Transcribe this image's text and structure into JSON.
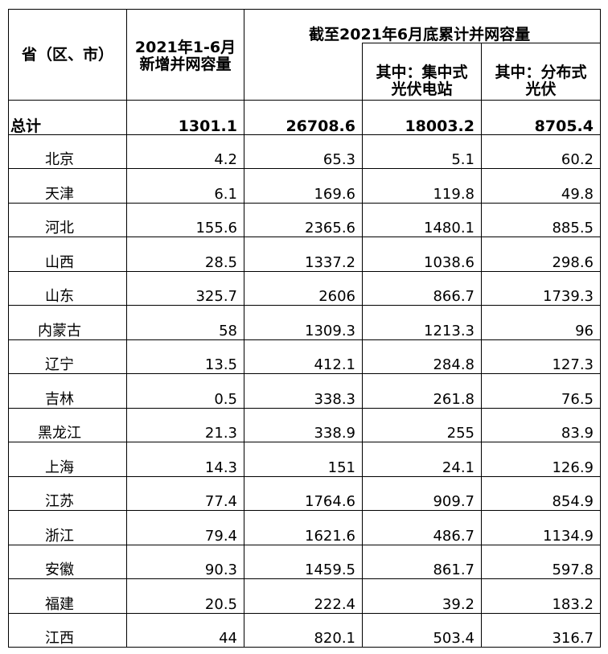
{
  "header": {
    "region": "省（区、市）",
    "new_capacity": [
      "2021年1-6月",
      "新增并网容量"
    ],
    "cumulative": "截至2021年6月底累计并网容量",
    "centralized": [
      "其中：集中式",
      "光伏电站"
    ],
    "distributed": [
      "其中：分布式",
      "光伏"
    ]
  },
  "total": {
    "label": "总计",
    "values": [
      "1301.1",
      "26708.6",
      "18003.2",
      "8705.4"
    ]
  },
  "rows": [
    {
      "name": "北京",
      "values": [
        "4.2",
        "65.3",
        "5.1",
        "60.2"
      ]
    },
    {
      "name": "天津",
      "values": [
        "6.1",
        "169.6",
        "119.8",
        "49.8"
      ]
    },
    {
      "name": "河北",
      "values": [
        "155.6",
        "2365.6",
        "1480.1",
        "885.5"
      ]
    },
    {
      "name": "山西",
      "values": [
        "28.5",
        "1337.2",
        "1038.6",
        "298.6"
      ]
    },
    {
      "name": "山东",
      "values": [
        "325.7",
        "2606",
        "866.7",
        "1739.3"
      ]
    },
    {
      "name": "内蒙古",
      "values": [
        "58",
        "1309.3",
        "1213.3",
        "96"
      ]
    },
    {
      "name": "辽宁",
      "values": [
        "13.5",
        "412.1",
        "284.8",
        "127.3"
      ]
    },
    {
      "name": "吉林",
      "values": [
        "0.5",
        "338.3",
        "261.8",
        "76.5"
      ]
    },
    {
      "name": "黑龙江",
      "values": [
        "21.3",
        "338.9",
        "255",
        "83.9"
      ]
    },
    {
      "name": "上海",
      "values": [
        "14.3",
        "151",
        "24.1",
        "126.9"
      ]
    },
    {
      "name": "江苏",
      "values": [
        "77.4",
        "1764.6",
        "909.7",
        "854.9"
      ]
    },
    {
      "name": "浙江",
      "values": [
        "79.4",
        "1621.6",
        "486.7",
        "1134.9"
      ]
    },
    {
      "name": "安徽",
      "values": [
        "90.3",
        "1459.5",
        "861.7",
        "597.8"
      ]
    },
    {
      "name": "福建",
      "values": [
        "20.5",
        "222.4",
        "39.2",
        "183.2"
      ]
    },
    {
      "name": "江西",
      "values": [
        "44",
        "820.1",
        "503.4",
        "316.7"
      ]
    }
  ]
}
